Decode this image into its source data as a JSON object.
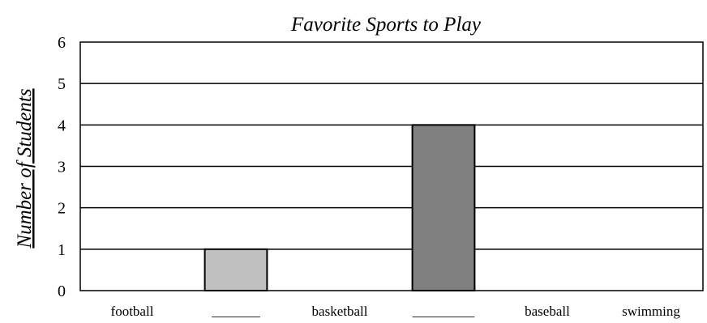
{
  "chart_data": {
    "type": "bar",
    "title": "Favorite Sports to Play",
    "xlabel": "",
    "ylabel": "Number of Students",
    "ylim": [
      0,
      6
    ],
    "yticks": [
      "0",
      "1",
      "2",
      "3",
      "4",
      "5",
      "6"
    ],
    "categories": [
      "football",
      "_______",
      "basketball",
      "_________",
      "baseball",
      "swimming"
    ],
    "values": [
      0,
      1,
      0,
      4,
      0,
      0
    ],
    "bar_colors": [
      "#c0c0c0",
      "#c0c0c0",
      "#c0c0c0",
      "#808080",
      "#c0c0c0",
      "#c0c0c0"
    ],
    "grid": true,
    "legend": "none"
  }
}
